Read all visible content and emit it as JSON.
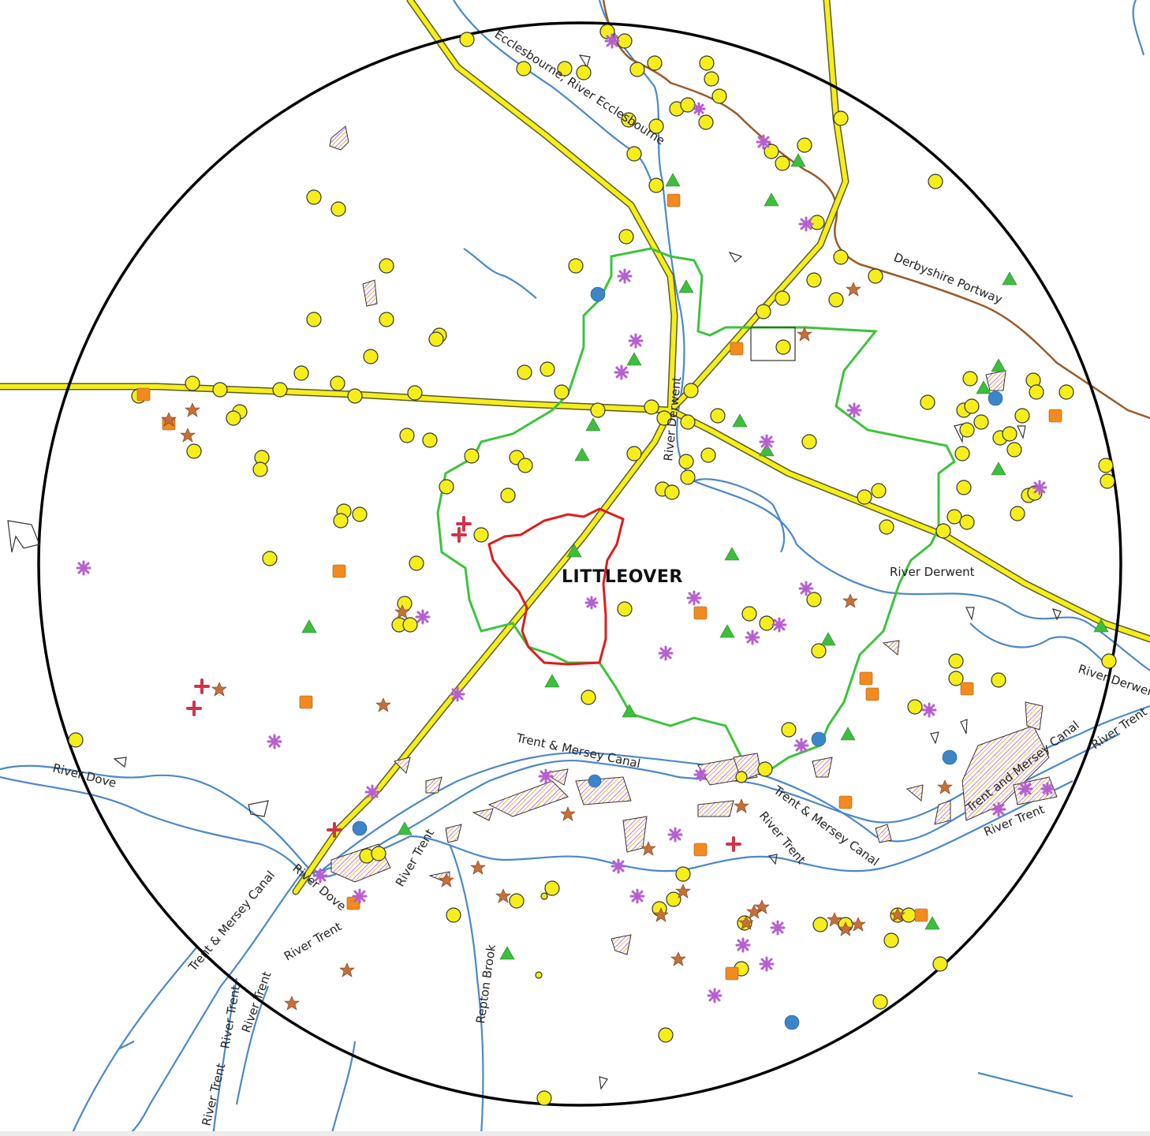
{
  "map": {
    "place_label": "LITTLEOVER",
    "colors": {
      "road": "#f5ee1a",
      "road_casing": "#5a5a2a",
      "river": "#4b88c8",
      "trail": "#9a5a2a",
      "search_area": "#000000",
      "parish_boundary": "#e01b1b",
      "district_boundary": "#3cc43c",
      "listed_building": "#f5ee1a",
      "scheduled_monument": "#3cbf3c",
      "heritage_site": "#f28a1e",
      "park_garden": "#3a86c8",
      "findspot": "#b55fd0",
      "historic_event": "#c4703a",
      "war_memorial": "#d0334a"
    },
    "labels": {
      "ecclesbourne": "Ecclesbourne; River Ecclesbourne",
      "derbyshire_portway": "Derbyshire Portway",
      "river_derwent_north": "River Derwent",
      "river_derwent_east": "River Derwent",
      "river_derwent_far_east": "River Derwent",
      "trent_mersey_canal_center": "Trent & Mersey Canal",
      "trent_mersey_canal_right": "Trent & Mersey Canal",
      "trent_mersey_canal_east": "Trent and Mersey Canal",
      "trent_mersey_canal_sw": "Trent & Mersey Canal",
      "river_trent_center": "River Trent",
      "river_trent_right": "River Trent",
      "river_trent_east": "River Trent",
      "river_trent_far_east": "River Trent",
      "river_trent_sw1": "River Trent",
      "river_trent_sw2": "River Trent",
      "river_trent_sw3": "River Trent",
      "river_trent_sw4": "River Trent",
      "river_trent_bottom": "River Trent",
      "river_dove_west": "River Dove",
      "river_dove_sw": "River Dove",
      "repton_brook": "Repton Brook"
    }
  }
}
